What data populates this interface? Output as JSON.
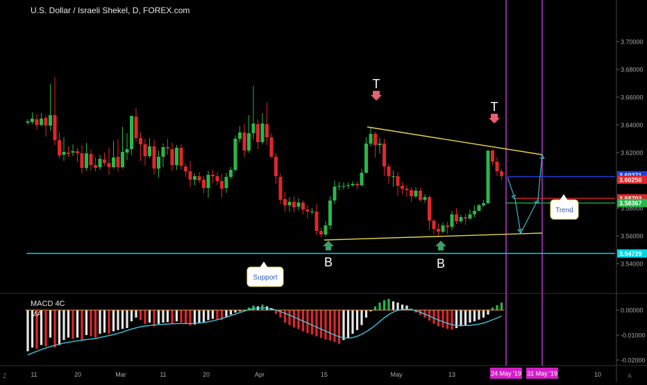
{
  "title": "U.S. Dollar / Israeli Shekel, D, FOREX.com",
  "macd_label": "MACD 4C",
  "ma_label": "MA",
  "corner_left": "Z",
  "corner_right": "A",
  "colors": {
    "up": "#27b84a",
    "down": "#e0262b",
    "support": "#00d6e8",
    "trend": "#e8d84a",
    "vline": "#b43cc8",
    "macd_signal": "#40c8e0",
    "price_blue": "#1f3fe0",
    "price_red": "#e0262b",
    "price_green": "#27b84a"
  },
  "chart_data": {
    "type": "candlestick",
    "x_ticks": [
      "11",
      "20",
      "Mar",
      "11",
      "20",
      "Apr",
      "15",
      "May",
      "13"
    ],
    "future_ticks": [
      "10"
    ],
    "y_ticks": [
      "3.70000",
      "3.68000",
      "3.66000",
      "3.64000",
      "3.62000",
      "3.60000",
      "3.58000",
      "3.56000",
      "3.54000"
    ],
    "ylim": [
      3.534,
      3.706
    ],
    "macd_ticks": [
      "0.00000",
      "-0.01000",
      "-0.02000"
    ],
    "macd_ylim": [
      -0.0215,
      0.0035
    ],
    "price_labels": [
      {
        "text": "3.60271",
        "value": 3.60271,
        "color": "#1f3fe0"
      },
      {
        "text": "3.60250",
        "value": 3.6025,
        "color": "#e0262b"
      },
      {
        "text": "3.58703",
        "value": 3.58703,
        "color": "#e0262b"
      },
      {
        "text": "3.58367",
        "value": 3.58367,
        "color": "#27b84a"
      },
      {
        "text": "3.54729",
        "value": 3.54729,
        "color": "#00d6e8"
      }
    ],
    "date_badges": [
      "24 May '19",
      "31 May '19"
    ],
    "annotations": {
      "top_marker": "T",
      "bottom_marker": "B",
      "support": "Support",
      "trend": "Trend"
    },
    "candles": [
      [
        3.6415,
        3.6425,
        3.644,
        3.64
      ],
      [
        3.642,
        3.6445,
        3.649,
        3.6405
      ],
      [
        3.644,
        3.64,
        3.6475,
        3.6365
      ],
      [
        3.64,
        3.6445,
        3.6485,
        3.639
      ],
      [
        3.645,
        3.6395,
        3.647,
        3.6315
      ],
      [
        3.6395,
        3.647,
        3.6695,
        3.636
      ],
      [
        3.647,
        3.629,
        3.6745,
        3.6255
      ],
      [
        3.629,
        3.618,
        3.6345,
        3.616
      ],
      [
        3.6185,
        3.6205,
        3.631,
        3.614
      ],
      [
        3.62,
        3.619,
        3.6245,
        3.617
      ],
      [
        3.62,
        3.621,
        3.626,
        3.6175
      ],
      [
        3.621,
        3.6195,
        3.6235,
        3.613
      ],
      [
        3.6195,
        3.609,
        3.6255,
        3.605
      ],
      [
        3.609,
        3.6195,
        3.627,
        3.607
      ],
      [
        3.619,
        3.611,
        3.6225,
        3.607
      ],
      [
        3.611,
        3.609,
        3.6165,
        3.6065
      ],
      [
        3.6095,
        3.6155,
        3.6185,
        3.6075
      ],
      [
        3.615,
        3.6125,
        3.62,
        3.6105
      ],
      [
        3.6125,
        3.6095,
        3.6235,
        3.604
      ],
      [
        3.6095,
        3.6165,
        3.6285,
        3.6085
      ],
      [
        3.617,
        3.6095,
        3.6295,
        3.6065
      ],
      [
        3.6095,
        3.6205,
        3.6385,
        3.6085
      ],
      [
        3.62,
        3.6225,
        3.634,
        3.6145
      ],
      [
        3.6225,
        3.6465,
        3.6465,
        3.618
      ],
      [
        3.646,
        3.6305,
        3.652,
        3.628
      ],
      [
        3.6305,
        3.626,
        3.6345,
        3.614
      ],
      [
        3.626,
        3.6175,
        3.63,
        3.6105
      ],
      [
        3.6175,
        3.6245,
        3.6305,
        3.616
      ],
      [
        3.6245,
        3.6085,
        3.6295,
        3.604
      ],
      [
        3.6085,
        3.617,
        3.6215,
        3.602
      ],
      [
        3.617,
        3.624,
        3.6265,
        3.6095
      ],
      [
        3.624,
        3.623,
        3.63,
        3.6185
      ],
      [
        3.6225,
        3.611,
        3.627,
        3.607
      ],
      [
        3.611,
        3.6235,
        3.6255,
        3.6075
      ],
      [
        3.6235,
        3.6105,
        3.626,
        3.6075
      ],
      [
        3.61,
        3.6065,
        3.612,
        3.6025
      ],
      [
        3.6065,
        3.6005,
        3.614,
        3.595
      ],
      [
        3.6005,
        3.603,
        3.605,
        3.5965
      ],
      [
        3.603,
        3.6,
        3.606,
        3.598
      ],
      [
        3.6005,
        3.5945,
        3.603,
        3.5905
      ],
      [
        3.5945,
        3.604,
        3.607,
        3.5875
      ],
      [
        3.604,
        3.603,
        3.6075,
        3.598
      ],
      [
        3.603,
        3.5995,
        3.606,
        3.5965
      ],
      [
        3.5995,
        3.594,
        3.6045,
        3.5875
      ],
      [
        3.5945,
        3.6025,
        3.6055,
        3.591
      ],
      [
        3.6025,
        3.6075,
        3.6095,
        3.601
      ],
      [
        3.6075,
        3.63,
        3.6325,
        3.6065
      ],
      [
        3.63,
        3.6345,
        3.639,
        3.6275
      ],
      [
        3.6345,
        3.6215,
        3.6405,
        3.617
      ],
      [
        3.6215,
        3.634,
        3.647,
        3.62
      ],
      [
        3.634,
        3.641,
        3.668,
        3.6295
      ],
      [
        3.6405,
        3.6275,
        3.644,
        3.6225
      ],
      [
        3.6275,
        3.641,
        3.6485,
        3.626
      ],
      [
        3.6405,
        3.631,
        3.656,
        3.6255
      ],
      [
        3.631,
        3.617,
        3.634,
        3.616
      ],
      [
        3.617,
        3.603,
        3.6195,
        3.5975
      ],
      [
        3.6025,
        3.586,
        3.605,
        3.583
      ],
      [
        3.5865,
        3.582,
        3.592,
        3.5775
      ],
      [
        3.582,
        3.5845,
        3.588,
        3.5775
      ],
      [
        3.5845,
        3.5805,
        3.5885,
        3.577
      ],
      [
        3.581,
        3.584,
        3.587,
        3.5785
      ],
      [
        3.584,
        3.579,
        3.5855,
        3.5755
      ],
      [
        3.579,
        3.5775,
        3.582,
        3.5725
      ],
      [
        3.5775,
        3.5775,
        3.58,
        3.5755
      ],
      [
        3.5775,
        3.5635,
        3.583,
        3.5605
      ],
      [
        3.5635,
        3.561,
        3.566,
        3.559
      ],
      [
        3.561,
        3.5675,
        3.5705,
        3.5595
      ],
      [
        3.5675,
        3.5855,
        3.5885,
        3.5645
      ],
      [
        3.5855,
        3.5955,
        3.6,
        3.583
      ],
      [
        3.5955,
        3.596,
        3.599,
        3.593
      ],
      [
        3.596,
        3.596,
        3.5985,
        3.5935
      ],
      [
        3.596,
        3.5965,
        3.5985,
        3.594
      ],
      [
        3.5965,
        3.5975,
        3.5995,
        3.5955
      ],
      [
        3.5975,
        3.5965,
        3.599,
        3.5935
      ],
      [
        3.5965,
        3.6055,
        3.6085,
        3.5955
      ],
      [
        3.6055,
        3.6265,
        3.631,
        3.605
      ],
      [
        3.6265,
        3.6335,
        3.6385,
        3.6245
      ],
      [
        3.6335,
        3.6255,
        3.635,
        3.6165
      ],
      [
        3.6255,
        3.6265,
        3.6305,
        3.619
      ],
      [
        3.6265,
        3.61,
        3.63,
        3.603
      ],
      [
        3.61,
        3.603,
        3.6115,
        3.5975
      ],
      [
        3.603,
        3.603,
        3.607,
        3.5955
      ],
      [
        3.603,
        3.596,
        3.606,
        3.589
      ],
      [
        3.596,
        3.594,
        3.5985,
        3.59
      ],
      [
        3.594,
        3.593,
        3.5965,
        3.588
      ],
      [
        3.593,
        3.5885,
        3.595,
        3.5845
      ],
      [
        3.5885,
        3.5925,
        3.595,
        3.587
      ],
      [
        3.5925,
        3.586,
        3.5945,
        3.585
      ],
      [
        3.586,
        3.588,
        3.59,
        3.584
      ],
      [
        3.588,
        3.571,
        3.589,
        3.564
      ],
      [
        3.571,
        3.565,
        3.572,
        3.561
      ],
      [
        3.565,
        3.563,
        3.569,
        3.56
      ],
      [
        3.563,
        3.5675,
        3.5695,
        3.562
      ],
      [
        3.5675,
        3.5665,
        3.57,
        3.5615
      ],
      [
        3.5665,
        3.5755,
        3.578,
        3.564
      ],
      [
        3.5755,
        3.5705,
        3.58,
        3.5685
      ],
      [
        3.5705,
        3.5735,
        3.575,
        3.569
      ],
      [
        3.5735,
        3.5725,
        3.576,
        3.568
      ],
      [
        3.5725,
        3.5755,
        3.579,
        3.5715
      ],
      [
        3.5755,
        3.578,
        3.582,
        3.5735
      ],
      [
        3.578,
        3.582,
        3.583,
        3.578
      ],
      [
        3.582,
        3.5835,
        3.586,
        3.581
      ],
      [
        3.5835,
        3.6215,
        3.6215,
        3.583
      ],
      [
        3.6215,
        3.6135,
        3.622,
        3.611
      ],
      [
        3.6135,
        3.6065,
        3.6165,
        3.603
      ],
      [
        3.6065,
        3.603,
        3.608,
        3.6
      ]
    ],
    "macd_hist": [
      -0.0165,
      -0.015,
      -0.0155,
      -0.014,
      -0.0145,
      -0.011,
      -0.015,
      -0.014,
      -0.012,
      -0.011,
      -0.0115,
      -0.011,
      -0.012,
      -0.01,
      -0.0105,
      -0.011,
      -0.0095,
      -0.009,
      -0.0095,
      -0.0085,
      -0.008,
      -0.0075,
      -0.0072,
      -0.0045,
      -0.003,
      -0.004,
      -0.0055,
      -0.005,
      -0.0065,
      -0.0055,
      -0.005,
      -0.0048,
      -0.0055,
      -0.0045,
      -0.005,
      -0.0055,
      -0.0062,
      -0.0058,
      -0.005,
      -0.0048,
      -0.004,
      -0.0035,
      -0.0038,
      -0.004,
      -0.003,
      -0.0018,
      -0.001,
      -0.0005,
      0.0,
      0.001,
      0.0018,
      0.0015,
      0.0022,
      0.0015,
      0.0008,
      -0.0015,
      -0.003,
      -0.005,
      -0.006,
      -0.007,
      -0.0075,
      -0.0085,
      -0.0092,
      -0.0098,
      -0.0105,
      -0.0112,
      -0.0118,
      -0.0122,
      -0.0128,
      -0.0135,
      -0.012,
      -0.011,
      -0.0095,
      -0.008,
      -0.006,
      -0.003,
      -0.0005,
      0.0015,
      0.003,
      0.004,
      0.0045,
      0.0035,
      0.003,
      0.0022,
      0.0018,
      0.0005,
      -0.001,
      -0.002,
      -0.003,
      -0.0042,
      -0.0055,
      -0.0065,
      -0.007,
      -0.0075,
      -0.0078,
      -0.0072,
      -0.0065,
      -0.006,
      -0.005,
      -0.0045,
      -0.0038,
      -0.003,
      -0.0018,
      0.001,
      0.002,
      0.003
    ],
    "macd_signal": [
      -0.018,
      -0.0172,
      -0.0165,
      -0.0158,
      -0.0152,
      -0.0146,
      -0.0141,
      -0.0136,
      -0.0132,
      -0.0129,
      -0.0126,
      -0.0123,
      -0.0121,
      -0.0118,
      -0.0116,
      -0.0114,
      -0.011,
      -0.0106,
      -0.0102,
      -0.0098,
      -0.0093,
      -0.0088,
      -0.0082,
      -0.0076,
      -0.0071,
      -0.0067,
      -0.0064,
      -0.0062,
      -0.006,
      -0.0058,
      -0.0057,
      -0.0056,
      -0.0055,
      -0.0054,
      -0.0054,
      -0.0054,
      -0.0054,
      -0.0053,
      -0.0052,
      -0.005,
      -0.0047,
      -0.0043,
      -0.0039,
      -0.0034,
      -0.0028,
      -0.0022,
      -0.0016,
      -0.001,
      -0.0004,
      0.0002,
      0.0006,
      0.0008,
      0.0009,
      0.0008,
      0.0005,
      0.0,
      -0.0006,
      -0.0013,
      -0.002,
      -0.0028,
      -0.0036,
      -0.0044,
      -0.0052,
      -0.006,
      -0.0068,
      -0.0076,
      -0.0084,
      -0.0092,
      -0.01,
      -0.0107,
      -0.0111,
      -0.0112,
      -0.011,
      -0.0105,
      -0.0097,
      -0.0087,
      -0.0075,
      -0.0061,
      -0.0046,
      -0.0031,
      -0.0018,
      -0.0008,
      -0.0001,
      0.0003,
      0.0004,
      0.0002,
      -0.0003,
      -0.0009,
      -0.0016,
      -0.0024,
      -0.0032,
      -0.004,
      -0.0047,
      -0.0053,
      -0.0058,
      -0.0061,
      -0.0062,
      -0.0062,
      -0.0061,
      -0.0059,
      -0.0056,
      -0.0052,
      -0.0046,
      -0.0039,
      -0.0032,
      -0.0024
    ]
  }
}
